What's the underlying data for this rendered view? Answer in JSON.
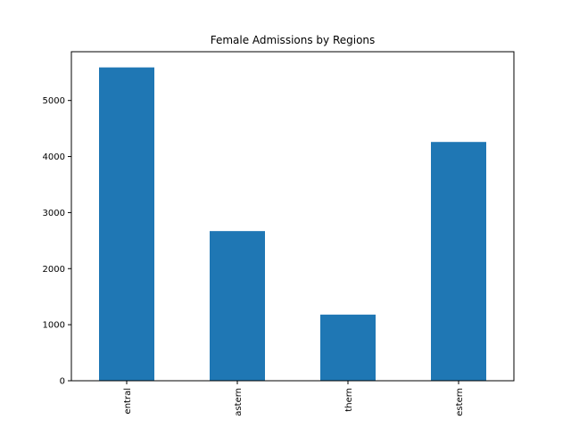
{
  "chart_data": {
    "type": "bar",
    "title": "Female Admissions by Regions",
    "xlabel": "",
    "ylabel": "",
    "categories": [
      "Central",
      "Eastern",
      "Northern",
      "Western"
    ],
    "visible_tick_labels": [
      "entral",
      "astern",
      "thern",
      "estern"
    ],
    "values": [
      5590,
      2670,
      1180,
      4260
    ],
    "ylim": [
      0,
      5870
    ],
    "yticks": [
      0,
      1000,
      2000,
      3000,
      4000,
      5000
    ],
    "grid": false,
    "legend": "none",
    "bar_color": "#1f77b4"
  }
}
